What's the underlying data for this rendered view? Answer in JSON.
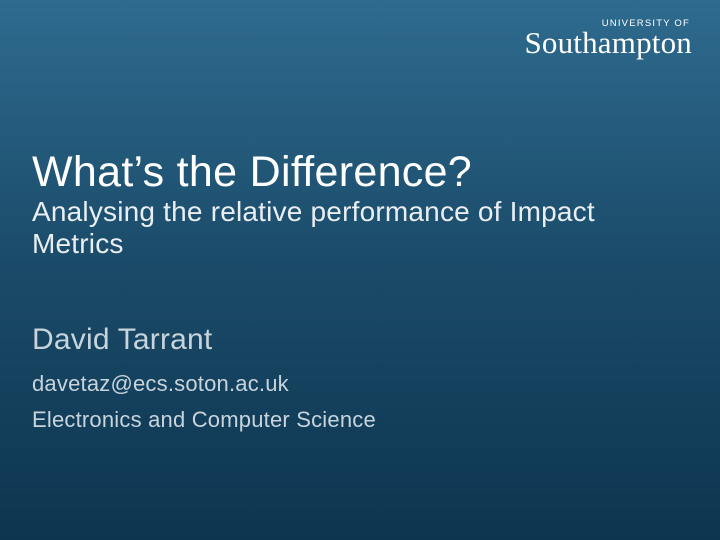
{
  "slide": {
    "background_gradient_top": "#2e6b8f",
    "background_gradient_mid": "#1a4a68",
    "background_gradient_bottom": "#0d3550",
    "text_color_primary": "#ffffff",
    "text_color_secondary": "#c7d4dc"
  },
  "logo": {
    "small_text": "UNIVERSITY OF",
    "large_text": "Southampton",
    "small_fontsize": 9.5,
    "large_fontsize": 31,
    "large_font_family": "Georgia, serif",
    "color": "#ffffff"
  },
  "title": {
    "text": "What’s the Difference?",
    "fontsize": 43,
    "color": "#ffffff"
  },
  "subtitle": {
    "text": "Analysing the relative performance of Impact Metrics",
    "fontsize": 28,
    "color": "#e8eef2"
  },
  "author": {
    "text": "David Tarrant",
    "fontsize": 30,
    "color": "#c7d4dc"
  },
  "email": {
    "text": "davetaz@ecs.soton.ac.uk",
    "fontsize": 22,
    "color": "#c7d4dc"
  },
  "department": {
    "text": "Electronics and Computer Science",
    "fontsize": 22,
    "color": "#c7d4dc"
  }
}
